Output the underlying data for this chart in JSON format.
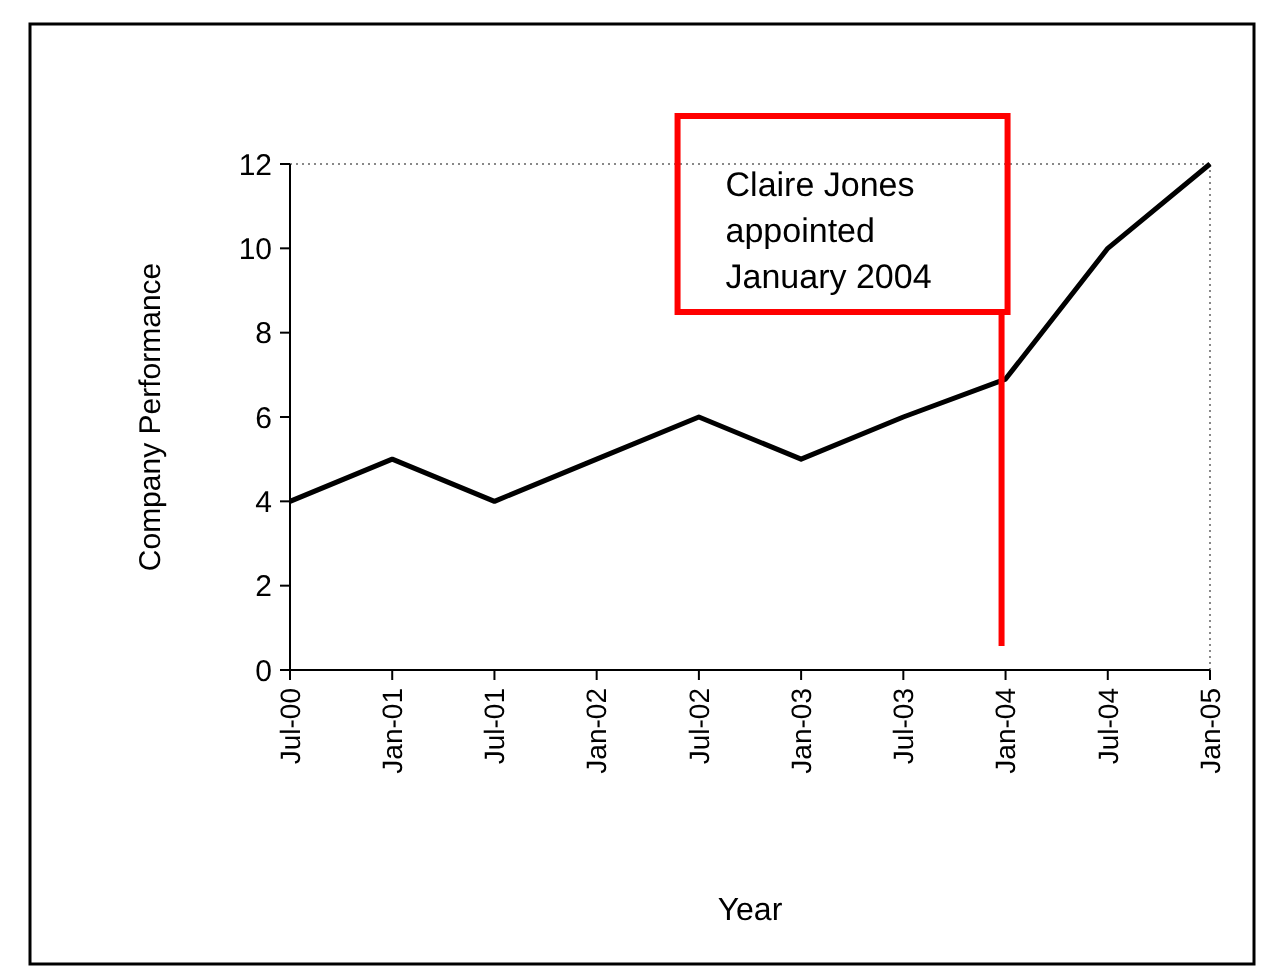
{
  "chart_data": {
    "type": "line",
    "xlabel": "Year",
    "ylabel": "Company Performance",
    "categories": [
      "Jul-00",
      "Jan-01",
      "Jul-01",
      "Jan-02",
      "Jul-02",
      "Jan-03",
      "Jul-03",
      "Jan-04",
      "Jul-04",
      "Jan-05"
    ],
    "series": [
      {
        "color": "#000000",
        "values": [
          4,
          5,
          4,
          5,
          6,
          5,
          6,
          6.9,
          10,
          12
        ]
      }
    ],
    "ylim": [
      0,
      12
    ],
    "yticks": [
      0,
      2,
      4,
      6,
      8,
      10,
      12
    ],
    "grid": false,
    "marker": "none",
    "line_style": "solid",
    "ref_lines": [
      {
        "axis": "x",
        "value": "Jan-04",
        "label": "Claire Jones appointed January 2004",
        "color": "#ff0000"
      }
    ]
  }
}
